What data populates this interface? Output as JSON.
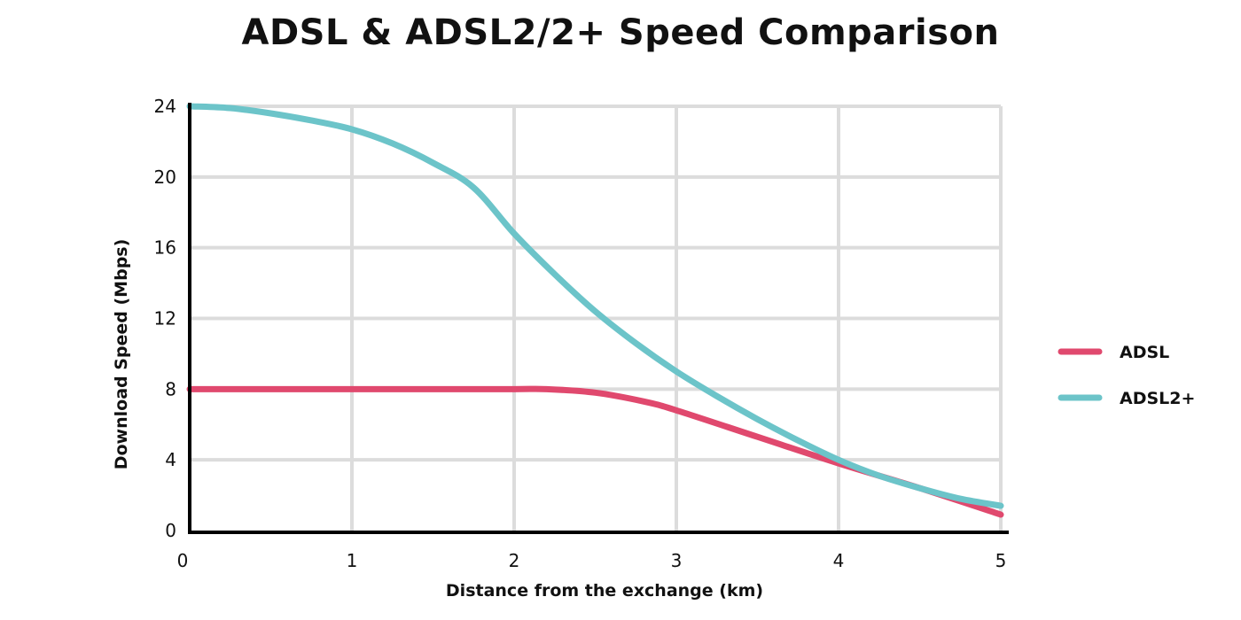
{
  "chart_data": {
    "type": "line",
    "title": "ADSL & ADSL2/2+ Speed Comparison",
    "xlabel": "Distance from the exchange (km)",
    "ylabel": "Download Speed (Mbps)",
    "xlim": [
      0,
      5
    ],
    "ylim": [
      0,
      24
    ],
    "x_ticks": [
      0,
      1,
      2,
      3,
      4,
      5
    ],
    "y_ticks": [
      0,
      4,
      8,
      12,
      16,
      20,
      24
    ],
    "grid": true,
    "legend_position": "right",
    "series": [
      {
        "name": "ADSL",
        "color": "#e0496e",
        "x": [
          0,
          0.5,
          1,
          1.5,
          2,
          2.2,
          2.5,
          2.8,
          3,
          3.5,
          4,
          4.5,
          5
        ],
        "y": [
          8,
          8,
          8,
          8,
          8,
          8,
          7.8,
          7.3,
          6.8,
          5.3,
          3.8,
          2.4,
          0.9
        ]
      },
      {
        "name": "ADSL2+",
        "color": "#6cc4c9",
        "x": [
          0,
          0.25,
          0.5,
          0.75,
          1,
          1.25,
          1.5,
          1.75,
          2,
          2.25,
          2.5,
          2.75,
          3,
          3.25,
          3.5,
          3.75,
          4,
          4.25,
          4.5,
          4.75,
          5
        ],
        "y": [
          24,
          23.9,
          23.6,
          23.2,
          22.7,
          21.9,
          20.8,
          19.4,
          16.8,
          14.5,
          12.4,
          10.6,
          9.0,
          7.6,
          6.3,
          5.1,
          4.0,
          3.1,
          2.4,
          1.8,
          1.4
        ]
      }
    ]
  }
}
